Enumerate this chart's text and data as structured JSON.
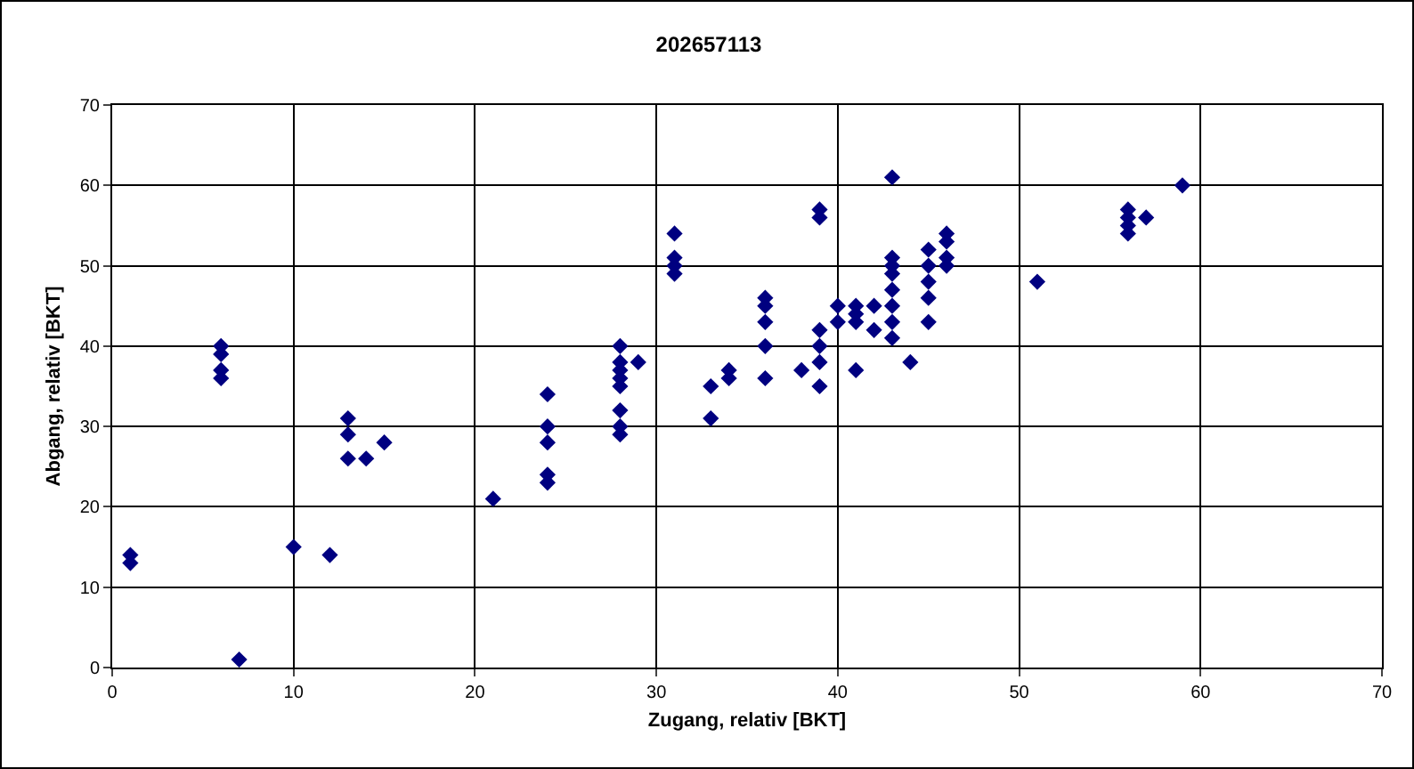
{
  "chart_data": {
    "type": "scatter",
    "title": "202657113",
    "xlabel": "Zugang, relativ [BKT]",
    "ylabel": "Abgang, relativ [BKT]",
    "x": [
      1,
      1,
      6,
      6,
      6,
      6,
      7,
      10,
      12,
      13,
      13,
      13,
      14,
      15,
      21,
      24,
      24,
      24,
      24,
      24,
      28,
      28,
      28,
      28,
      28,
      28,
      28,
      28,
      29,
      31,
      31,
      31,
      31,
      33,
      33,
      34,
      34,
      36,
      36,
      36,
      36,
      36,
      38,
      39,
      39,
      39,
      39,
      39,
      39,
      40,
      40,
      41,
      41,
      41,
      41,
      42,
      42,
      43,
      43,
      43,
      43,
      43,
      43,
      43,
      43,
      44,
      45,
      45,
      45,
      45,
      45,
      46,
      46,
      46,
      46,
      51,
      56,
      56,
      56,
      56,
      57,
      59
    ],
    "values": [
      14,
      13,
      40,
      39,
      37,
      36,
      1,
      15,
      14,
      31,
      29,
      26,
      26,
      28,
      21,
      34,
      30,
      28,
      24,
      23,
      40,
      38,
      37,
      36,
      35,
      32,
      30,
      29,
      38,
      54,
      51,
      50,
      49,
      35,
      31,
      37,
      36,
      46,
      45,
      43,
      40,
      36,
      37,
      57,
      56,
      42,
      40,
      38,
      35,
      45,
      43,
      45,
      44,
      43,
      37,
      45,
      42,
      61,
      51,
      50,
      49,
      47,
      45,
      43,
      41,
      38,
      52,
      50,
      48,
      46,
      43,
      54,
      53,
      51,
      50,
      48,
      57,
      56,
      55,
      54,
      56,
      60
    ],
    "color": "#000080",
    "marker": "diamond",
    "xlim": [
      0,
      70
    ],
    "ylim": [
      0,
      70
    ],
    "xticks": [
      0,
      10,
      20,
      30,
      40,
      50,
      60,
      70
    ],
    "yticks": [
      0,
      10,
      20,
      30,
      40,
      50,
      60,
      70
    ],
    "grid": true
  }
}
